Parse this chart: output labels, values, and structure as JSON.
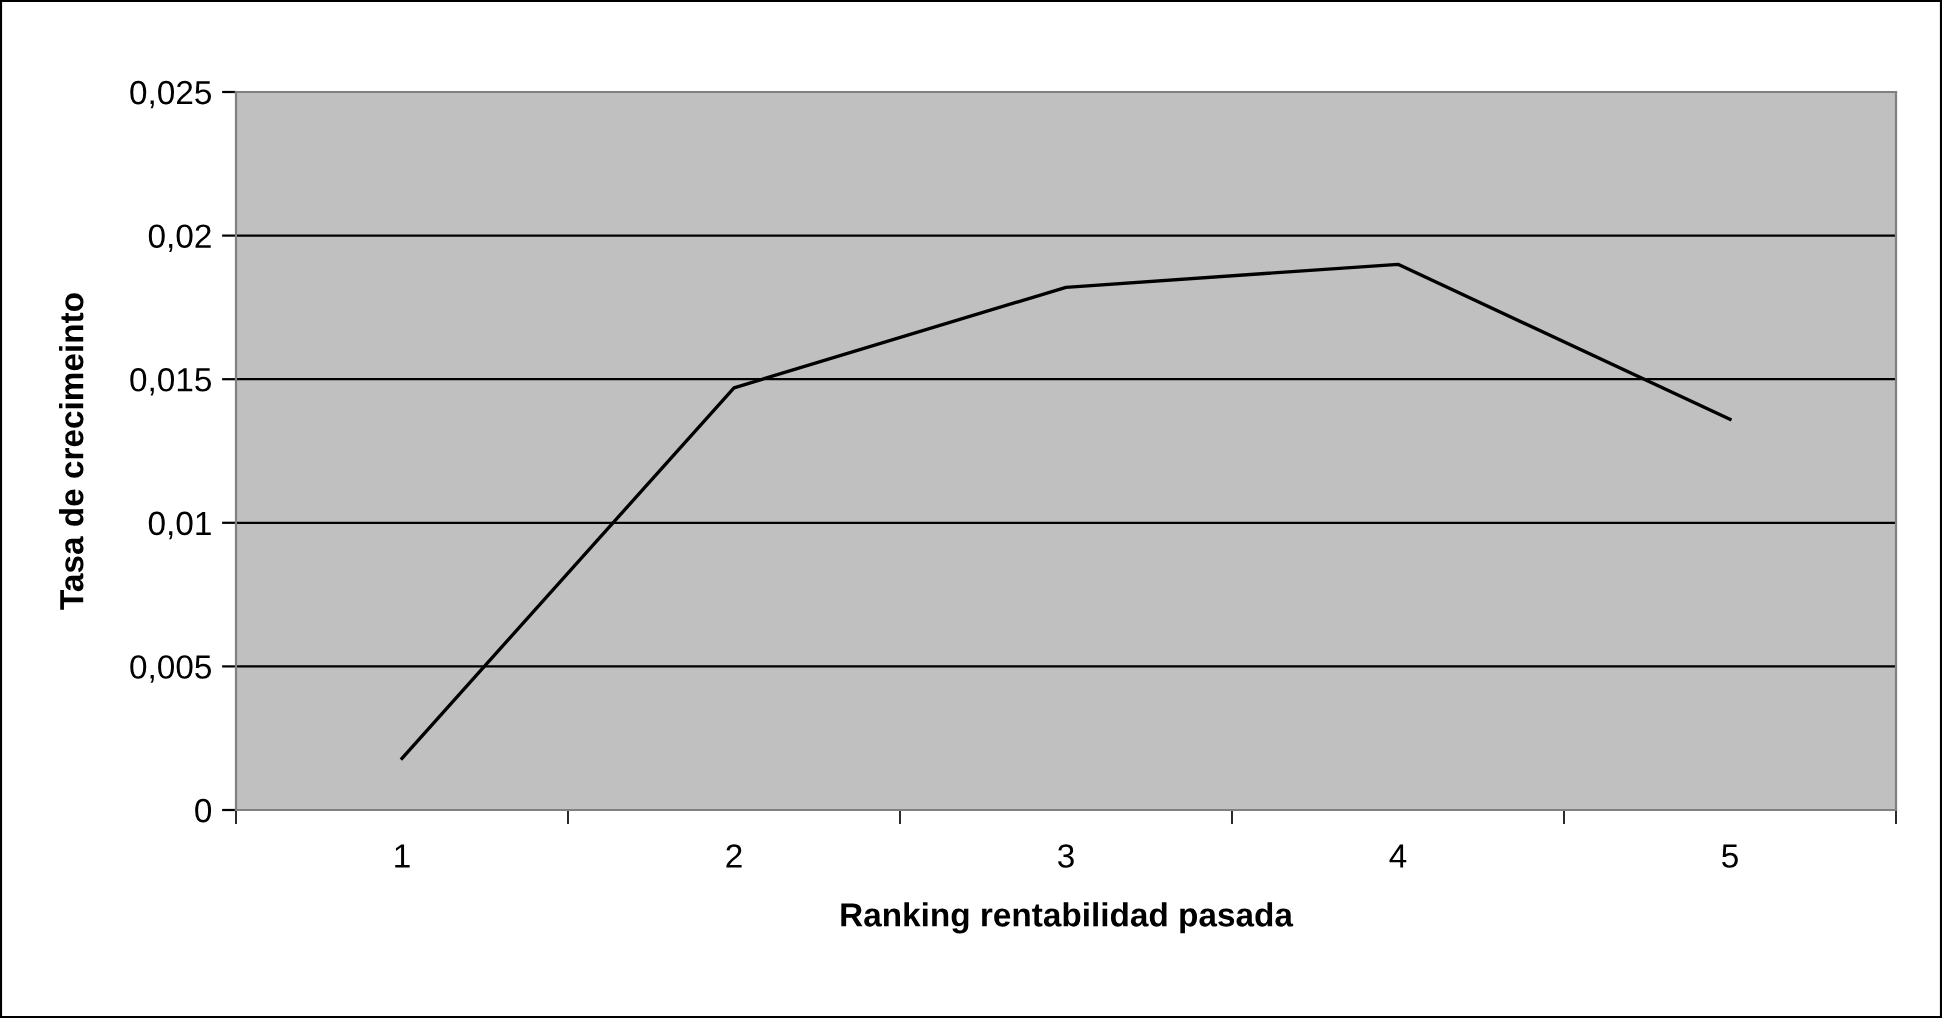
{
  "chart_data": {
    "type": "line",
    "xlabel": "Ranking rentabilidad pasada",
    "ylabel": "Tasa de crecimeinto",
    "categories": [
      "1",
      "2",
      "3",
      "4",
      "5"
    ],
    "series": [
      {
        "color": "#000000",
        "values": [
          0.0018,
          0.0147,
          0.0182,
          0.019,
          0.0136
        ]
      }
    ],
    "ylim": [
      0,
      0.025
    ],
    "yticks": [
      0,
      {
        "value": 0.005,
        "label": "0,005"
      },
      {
        "value": 0.01,
        "label": "0,01"
      },
      {
        "value": 0.015,
        "label": "0,015"
      },
      {
        "value": 0.02,
        "label": "0,02"
      },
      {
        "value": 0.025,
        "label": "0,025"
      }
    ],
    "grid": "y",
    "legend": false,
    "marker": "none",
    "line_style": "solid"
  }
}
